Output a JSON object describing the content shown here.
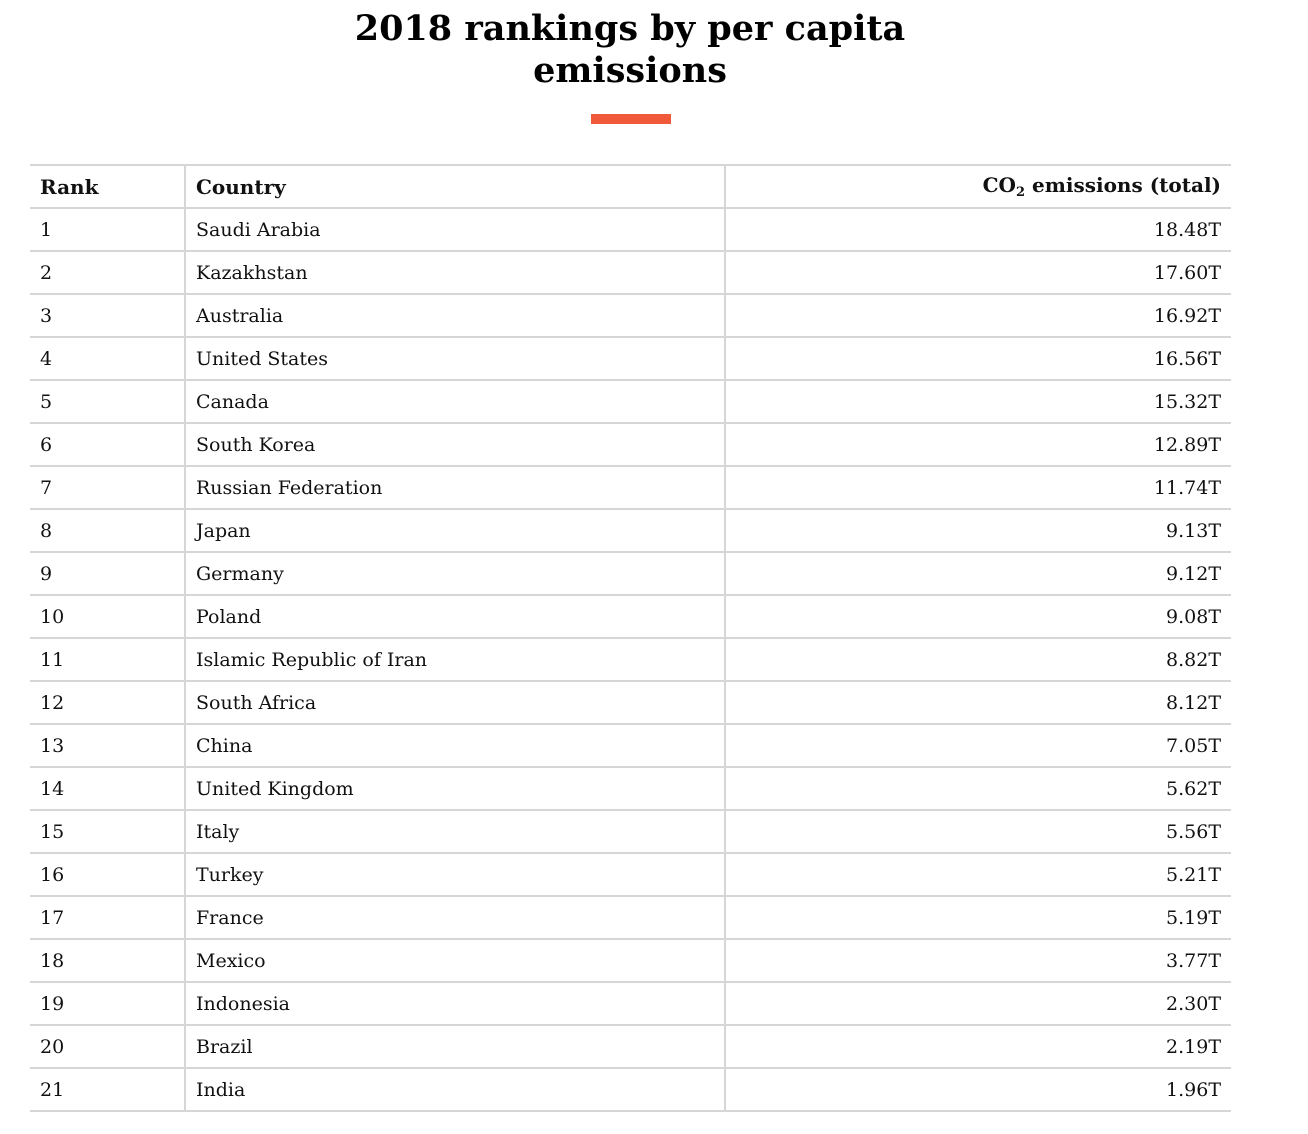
{
  "header": {
    "title_line1": "2018 rankings by per capita",
    "title_line2": "emissions",
    "accent_color": "#f05a3b"
  },
  "table": {
    "columns": {
      "rank": "Rank",
      "country": "Country",
      "value_prefix": "CO",
      "value_sub": "2",
      "value_suffix": " emissions (total)"
    },
    "rows": [
      {
        "rank": "1",
        "country": "Saudi Arabia",
        "value": "18.48T"
      },
      {
        "rank": "2",
        "country": "Kazakhstan",
        "value": "17.60T"
      },
      {
        "rank": "3",
        "country": "Australia",
        "value": "16.92T"
      },
      {
        "rank": "4",
        "country": "United States",
        "value": "16.56T"
      },
      {
        "rank": "5",
        "country": "Canada",
        "value": "15.32T"
      },
      {
        "rank": "6",
        "country": "South Korea",
        "value": "12.89T"
      },
      {
        "rank": "7",
        "country": "Russian Federation",
        "value": "11.74T"
      },
      {
        "rank": "8",
        "country": "Japan",
        "value": "9.13T"
      },
      {
        "rank": "9",
        "country": "Germany",
        "value": "9.12T"
      },
      {
        "rank": "10",
        "country": "Poland",
        "value": "9.08T"
      },
      {
        "rank": "11",
        "country": "Islamic Republic of Iran",
        "value": "8.82T"
      },
      {
        "rank": "12",
        "country": "South Africa",
        "value": "8.12T"
      },
      {
        "rank": "13",
        "country": "China",
        "value": "7.05T"
      },
      {
        "rank": "14",
        "country": "United Kingdom",
        "value": "5.62T"
      },
      {
        "rank": "15",
        "country": "Italy",
        "value": "5.56T"
      },
      {
        "rank": "16",
        "country": "Turkey",
        "value": "5.21T"
      },
      {
        "rank": "17",
        "country": "France",
        "value": "5.19T"
      },
      {
        "rank": "18",
        "country": "Mexico",
        "value": "3.77T"
      },
      {
        "rank": "19",
        "country": "Indonesia",
        "value": "2.30T"
      },
      {
        "rank": "20",
        "country": "Brazil",
        "value": "2.19T"
      },
      {
        "rank": "21",
        "country": "India",
        "value": "1.96T"
      }
    ]
  },
  "chart_data": {
    "type": "table",
    "title": "2018 rankings by per capita emissions",
    "columns": [
      "Rank",
      "Country",
      "CO2 emissions (total)"
    ],
    "categories": [
      "Saudi Arabia",
      "Kazakhstan",
      "Australia",
      "United States",
      "Canada",
      "South Korea",
      "Russian Federation",
      "Japan",
      "Germany",
      "Poland",
      "Islamic Republic of Iran",
      "South Africa",
      "China",
      "United Kingdom",
      "Italy",
      "Turkey",
      "France",
      "Mexico",
      "Indonesia",
      "Brazil",
      "India"
    ],
    "ranks": [
      1,
      2,
      3,
      4,
      5,
      6,
      7,
      8,
      9,
      10,
      11,
      12,
      13,
      14,
      15,
      16,
      17,
      18,
      19,
      20,
      21
    ],
    "values": [
      18.48,
      17.6,
      16.92,
      16.56,
      15.32,
      12.89,
      11.74,
      9.13,
      9.12,
      9.08,
      8.82,
      8.12,
      7.05,
      5.62,
      5.56,
      5.21,
      5.19,
      3.77,
      2.3,
      2.19,
      1.96
    ],
    "unit": "T"
  }
}
